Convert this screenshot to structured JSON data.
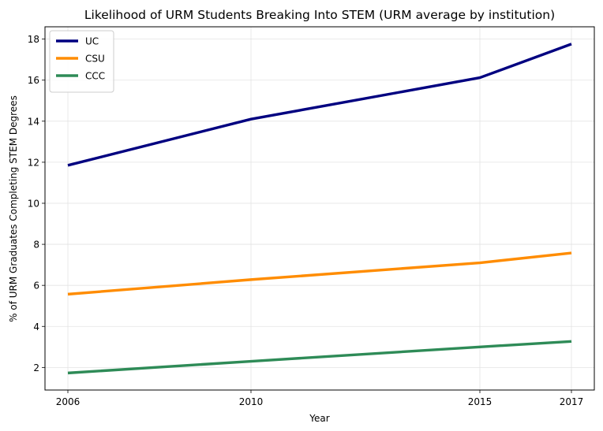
{
  "chart_data": {
    "type": "line",
    "title": "Likelihood of URM Students Breaking Into STEM (URM average by institution)",
    "xlabel": "Year",
    "ylabel": "% of URM Graduates Completing STEM Degrees",
    "x": [
      2006,
      2010,
      2015,
      2017
    ],
    "xlim": [
      2005.5,
      2017.5
    ],
    "ylim": [
      0.9,
      18.6
    ],
    "yticks": [
      2,
      4,
      6,
      8,
      10,
      12,
      14,
      16,
      18
    ],
    "grid": true,
    "legend_position": "top-left",
    "series": [
      {
        "name": "UC",
        "color": "#000080",
        "values": [
          11.85,
          14.1,
          16.12,
          17.76
        ]
      },
      {
        "name": "CSU",
        "color": "#ff8c00",
        "values": [
          5.57,
          6.28,
          7.1,
          7.58
        ]
      },
      {
        "name": "CCC",
        "color": "#2e8b57",
        "values": [
          1.73,
          2.3,
          3.0,
          3.27
        ]
      }
    ]
  }
}
